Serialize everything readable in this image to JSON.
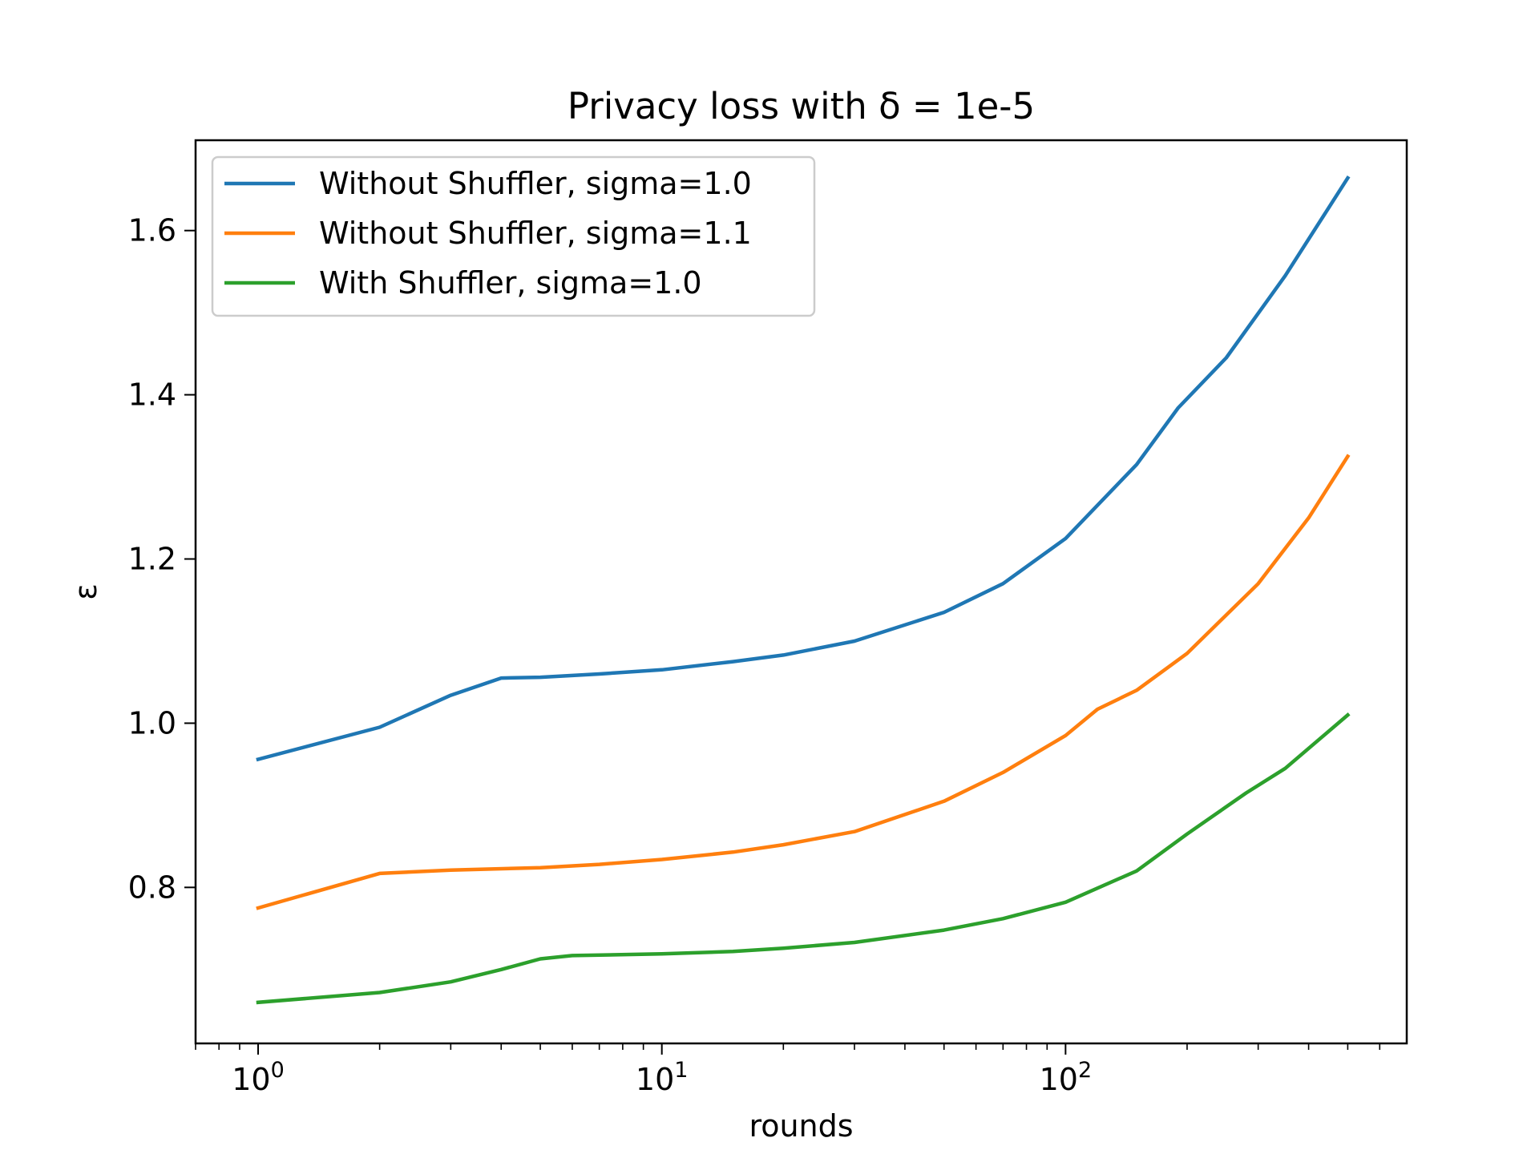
{
  "chart_data": {
    "type": "line",
    "title": "Privacy loss with δ = 1e-5",
    "xlabel": "rounds",
    "ylabel": "ε",
    "x_scale": "log",
    "xlim": [
      0.7,
      700
    ],
    "ylim": [
      0.61,
      1.71
    ],
    "x_ticks": [
      {
        "value": 1,
        "base": "10",
        "exp": "0"
      },
      {
        "value": 10,
        "base": "10",
        "exp": "1"
      },
      {
        "value": 100,
        "base": "10",
        "exp": "2"
      }
    ],
    "y_ticks": [
      {
        "value": 0.8,
        "label": "0.8"
      },
      {
        "value": 1.0,
        "label": "1.0"
      },
      {
        "value": 1.2,
        "label": "1.2"
      },
      {
        "value": 1.4,
        "label": "1.4"
      },
      {
        "value": 1.6,
        "label": "1.6"
      }
    ],
    "grid": false,
    "legend_position": "top-left",
    "series": [
      {
        "name": "Without Shuffler, sigma=1.0",
        "color": "#1f77b4",
        "points": [
          [
            1,
            0.956
          ],
          [
            2,
            0.995
          ],
          [
            3,
            1.034
          ],
          [
            4,
            1.055
          ],
          [
            5,
            1.056
          ],
          [
            7,
            1.06
          ],
          [
            10,
            1.065
          ],
          [
            15,
            1.075
          ],
          [
            20,
            1.083
          ],
          [
            30,
            1.1
          ],
          [
            50,
            1.135
          ],
          [
            70,
            1.17
          ],
          [
            100,
            1.225
          ],
          [
            150,
            1.315
          ],
          [
            190,
            1.384
          ],
          [
            250,
            1.445
          ],
          [
            350,
            1.545
          ],
          [
            500,
            1.664
          ]
        ]
      },
      {
        "name": "Without Shuffler, sigma=1.1",
        "color": "#ff7f0e",
        "points": [
          [
            1,
            0.775
          ],
          [
            2,
            0.817
          ],
          [
            3,
            0.821
          ],
          [
            5,
            0.824
          ],
          [
            7,
            0.828
          ],
          [
            10,
            0.834
          ],
          [
            15,
            0.843
          ],
          [
            20,
            0.852
          ],
          [
            30,
            0.868
          ],
          [
            50,
            0.905
          ],
          [
            70,
            0.94
          ],
          [
            100,
            0.985
          ],
          [
            120,
            1.017
          ],
          [
            150,
            1.04
          ],
          [
            200,
            1.085
          ],
          [
            300,
            1.17
          ],
          [
            400,
            1.25
          ],
          [
            500,
            1.325
          ]
        ]
      },
      {
        "name": "With Shuffler, sigma=1.0",
        "color": "#2ca02c",
        "points": [
          [
            1,
            0.66
          ],
          [
            2,
            0.672
          ],
          [
            3,
            0.685
          ],
          [
            4,
            0.7
          ],
          [
            5,
            0.713
          ],
          [
            6,
            0.717
          ],
          [
            10,
            0.719
          ],
          [
            15,
            0.722
          ],
          [
            20,
            0.726
          ],
          [
            30,
            0.733
          ],
          [
            50,
            0.748
          ],
          [
            70,
            0.762
          ],
          [
            100,
            0.782
          ],
          [
            150,
            0.82
          ],
          [
            200,
            0.865
          ],
          [
            280,
            0.915
          ],
          [
            350,
            0.945
          ],
          [
            500,
            1.01
          ]
        ]
      }
    ]
  }
}
